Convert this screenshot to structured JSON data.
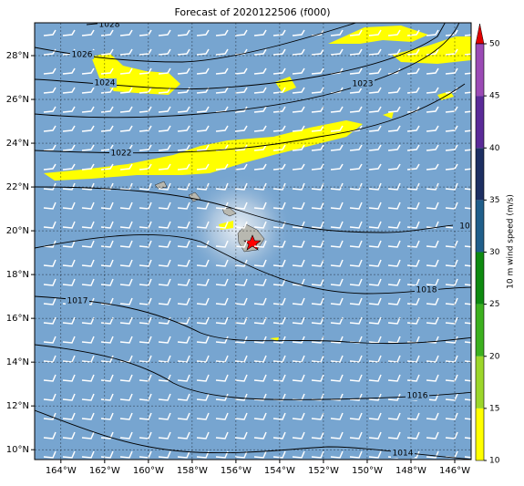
{
  "title": "Forecast of 2020122506 (f000)",
  "xticks": [
    {
      "value": -164,
      "label": "164°W"
    },
    {
      "value": -162,
      "label": "162°W"
    },
    {
      "value": -160,
      "label": "160°W"
    },
    {
      "value": -158,
      "label": "158°W"
    },
    {
      "value": -156,
      "label": "156°W"
    },
    {
      "value": -154,
      "label": "154°W"
    },
    {
      "value": -152,
      "label": "152°W"
    },
    {
      "value": -150,
      "label": "150°W"
    },
    {
      "value": -148,
      "label": "148°W"
    },
    {
      "value": -146,
      "label": "146°W"
    }
  ],
  "yticks": [
    {
      "value": 10,
      "label": "10°N"
    },
    {
      "value": 12,
      "label": "12°N"
    },
    {
      "value": 14,
      "label": "14°N"
    },
    {
      "value": 16,
      "label": "16°N"
    },
    {
      "value": 18,
      "label": "18°N"
    },
    {
      "value": 20,
      "label": "20°N"
    },
    {
      "value": 22,
      "label": "22°N"
    },
    {
      "value": 24,
      "label": "24°N"
    },
    {
      "value": 26,
      "label": "26°N"
    },
    {
      "value": 28,
      "label": "28°N"
    }
  ],
  "colorbar": {
    "label": "10 m wind speed (m/s)",
    "ticks": [
      10,
      15,
      20,
      25,
      30,
      35,
      40,
      45,
      50
    ],
    "colors": [
      "#ffff00",
      "#9cd62a",
      "#3cb01e",
      "#0e8a10",
      "#205e8a",
      "#1d2f62",
      "#5a2a98",
      "#9b4ab5"
    ]
  },
  "isobar_labels": [
    "1028",
    "1026",
    "1024",
    "1023",
    "1022",
    "10",
    "1018",
    "1017",
    "1016",
    "1014"
  ]
}
